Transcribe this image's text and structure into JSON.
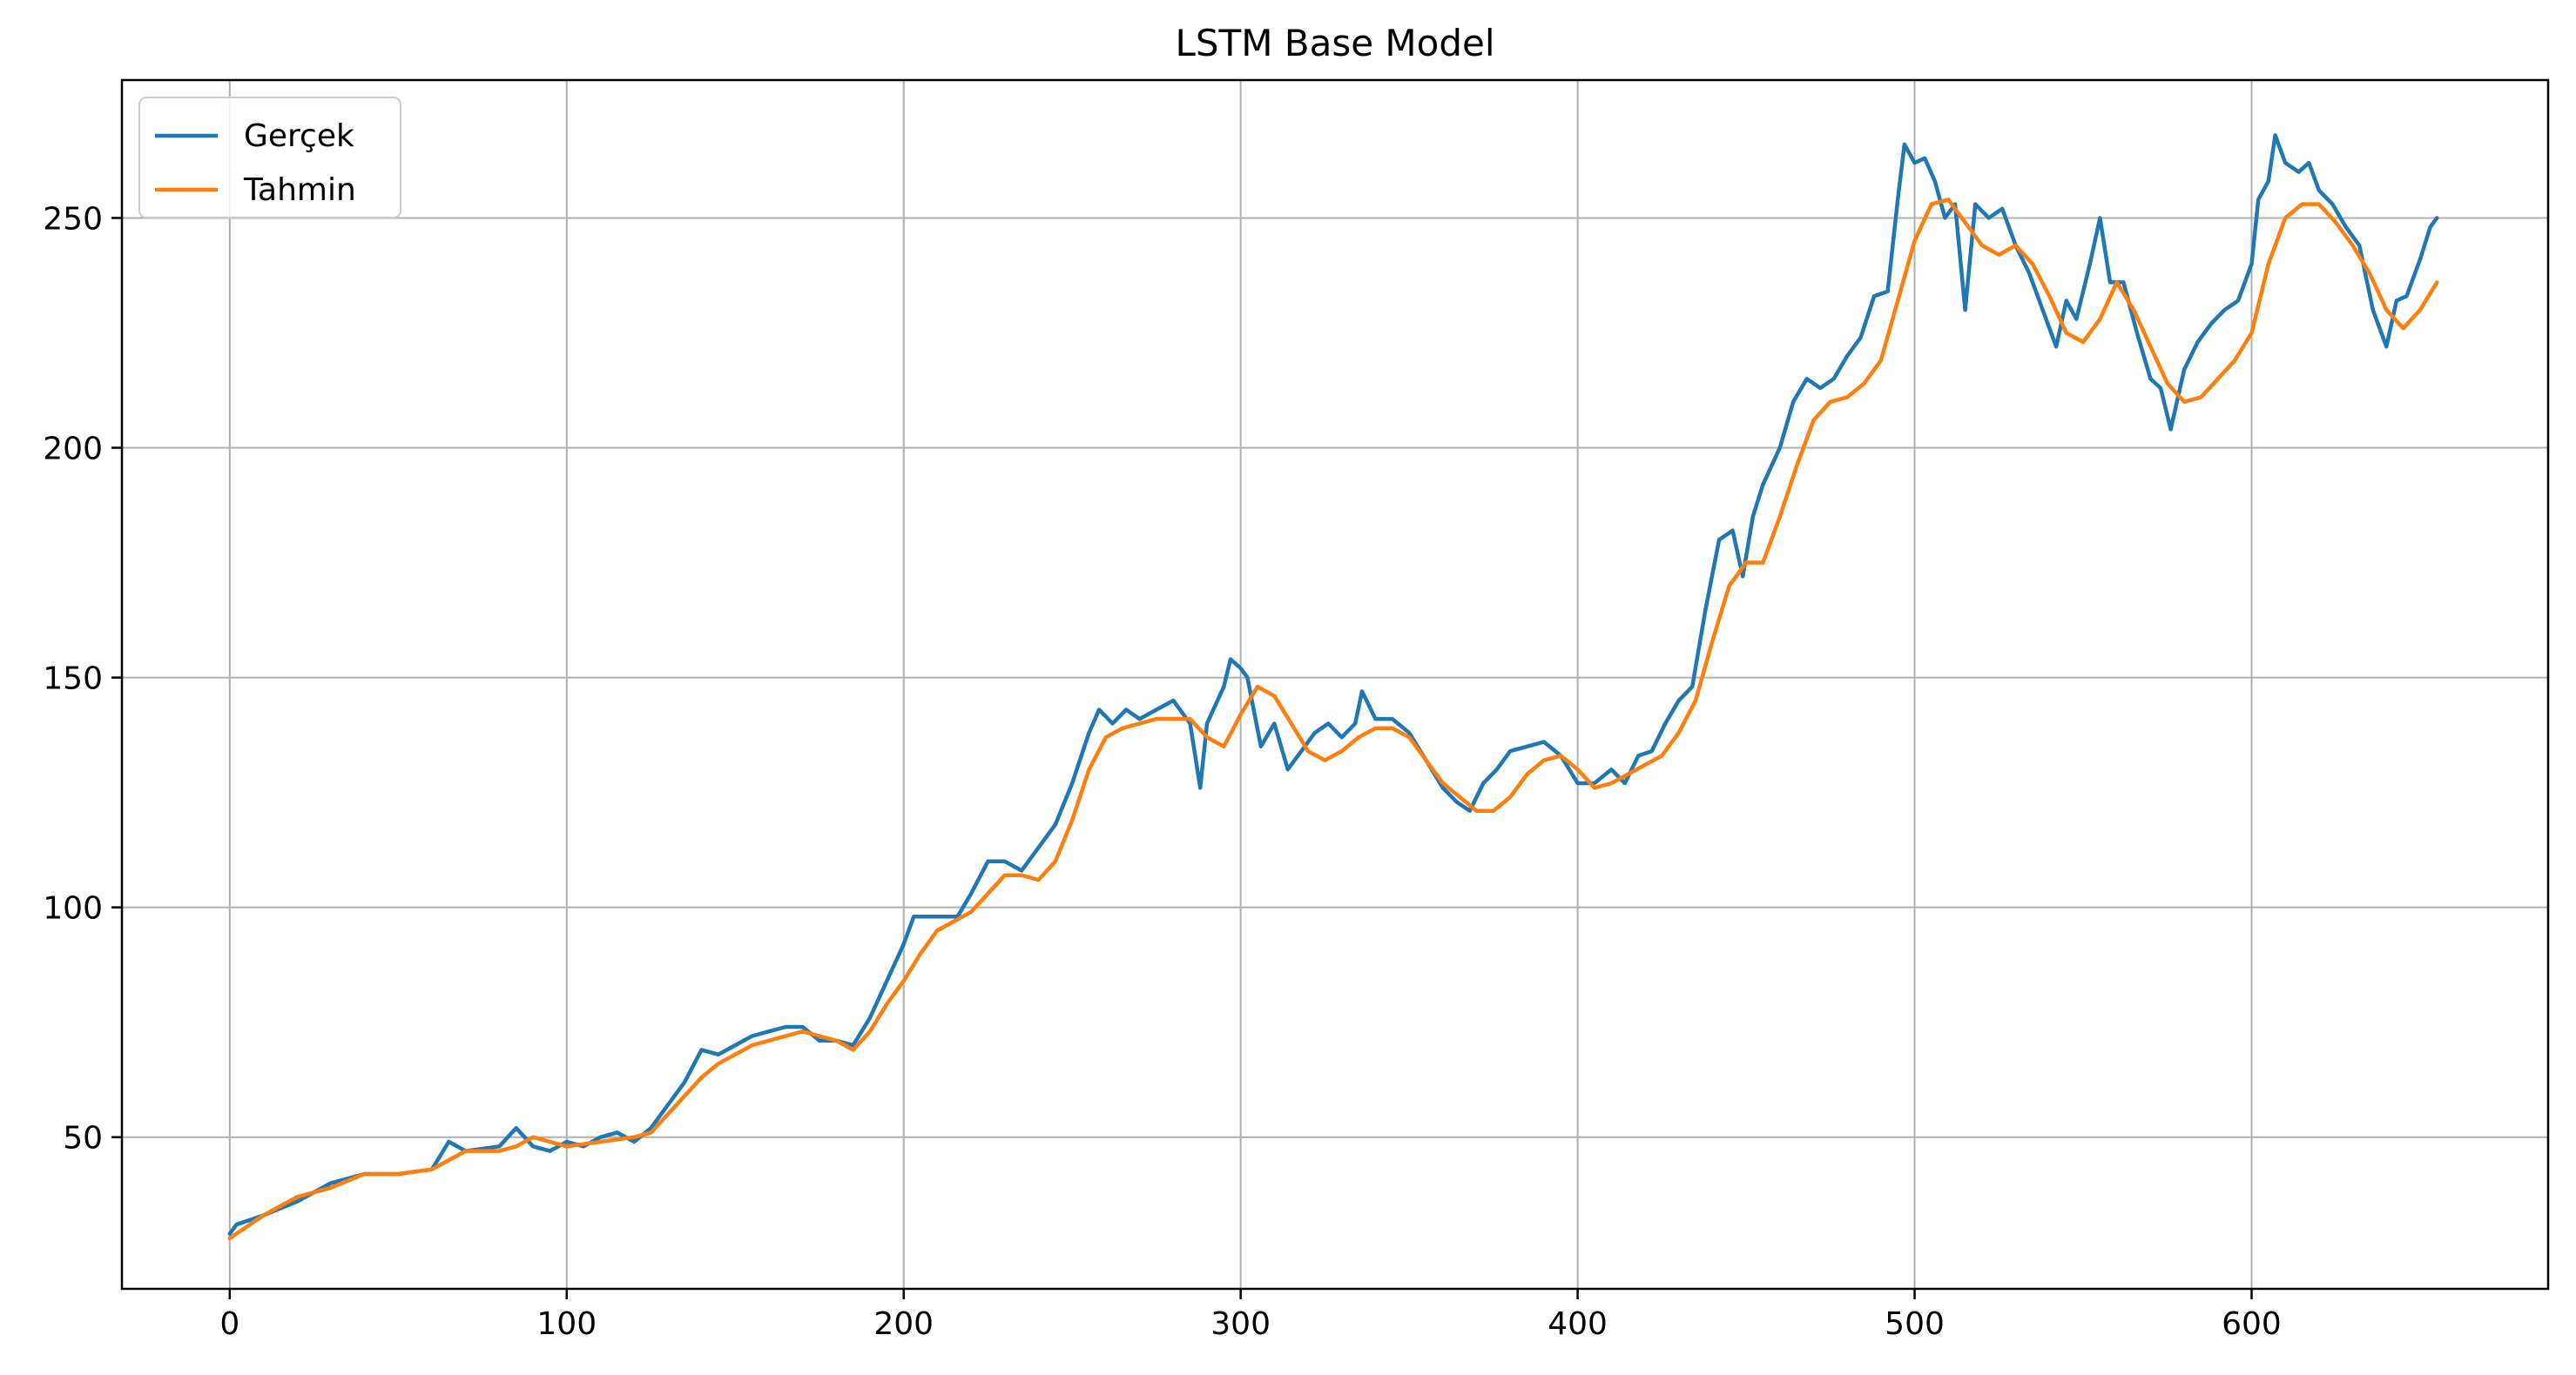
{
  "chart_data": {
    "type": "line",
    "title": "LSTM Base Model",
    "xlabel": "",
    "ylabel": "",
    "xlim": [
      -32,
      688
    ],
    "ylim": [
      17,
      280
    ],
    "xticks": [
      0,
      100,
      200,
      300,
      400,
      500,
      600
    ],
    "yticks": [
      50,
      100,
      150,
      200,
      250
    ],
    "grid": true,
    "legend_position": "top-left",
    "series": [
      {
        "name": "Gerçek",
        "color": "#1f77b4",
        "points": [
          [
            0,
            29
          ],
          [
            2,
            31
          ],
          [
            10,
            33
          ],
          [
            20,
            36
          ],
          [
            30,
            40
          ],
          [
            40,
            42
          ],
          [
            50,
            42
          ],
          [
            60,
            43
          ],
          [
            65,
            49
          ],
          [
            70,
            47
          ],
          [
            80,
            48
          ],
          [
            85,
            52
          ],
          [
            90,
            48
          ],
          [
            95,
            47
          ],
          [
            100,
            49
          ],
          [
            105,
            48
          ],
          [
            110,
            50
          ],
          [
            115,
            51
          ],
          [
            120,
            49
          ],
          [
            125,
            52
          ],
          [
            130,
            57
          ],
          [
            135,
            62
          ],
          [
            140,
            69
          ],
          [
            145,
            68
          ],
          [
            150,
            70
          ],
          [
            155,
            72
          ],
          [
            160,
            73
          ],
          [
            165,
            74
          ],
          [
            170,
            74
          ],
          [
            175,
            71
          ],
          [
            180,
            71
          ],
          [
            185,
            70
          ],
          [
            190,
            76
          ],
          [
            195,
            84
          ],
          [
            200,
            92
          ],
          [
            203,
            98
          ],
          [
            207,
            98
          ],
          [
            212,
            98
          ],
          [
            216,
            98
          ],
          [
            220,
            103
          ],
          [
            225,
            110
          ],
          [
            230,
            110
          ],
          [
            235,
            108
          ],
          [
            240,
            113
          ],
          [
            245,
            118
          ],
          [
            250,
            127
          ],
          [
            255,
            138
          ],
          [
            258,
            143
          ],
          [
            262,
            140
          ],
          [
            266,
            143
          ],
          [
            270,
            141
          ],
          [
            275,
            143
          ],
          [
            280,
            145
          ],
          [
            285,
            140
          ],
          [
            288,
            126
          ],
          [
            290,
            140
          ],
          [
            295,
            148
          ],
          [
            297,
            154
          ],
          [
            300,
            152
          ],
          [
            302,
            150
          ],
          [
            306,
            135
          ],
          [
            310,
            140
          ],
          [
            314,
            130
          ],
          [
            318,
            134
          ],
          [
            322,
            138
          ],
          [
            326,
            140
          ],
          [
            330,
            137
          ],
          [
            334,
            140
          ],
          [
            336,
            147
          ],
          [
            340,
            141
          ],
          [
            345,
            141
          ],
          [
            350,
            138
          ],
          [
            355,
            132
          ],
          [
            360,
            126
          ],
          [
            364,
            123
          ],
          [
            368,
            121
          ],
          [
            372,
            127
          ],
          [
            376,
            130
          ],
          [
            380,
            134
          ],
          [
            385,
            135
          ],
          [
            390,
            136
          ],
          [
            395,
            133
          ],
          [
            400,
            127
          ],
          [
            405,
            127
          ],
          [
            410,
            130
          ],
          [
            414,
            127
          ],
          [
            418,
            133
          ],
          [
            422,
            134
          ],
          [
            426,
            140
          ],
          [
            430,
            145
          ],
          [
            434,
            148
          ],
          [
            438,
            165
          ],
          [
            442,
            180
          ],
          [
            446,
            182
          ],
          [
            449,
            172
          ],
          [
            452,
            185
          ],
          [
            455,
            192
          ],
          [
            460,
            200
          ],
          [
            464,
            210
          ],
          [
            468,
            215
          ],
          [
            472,
            213
          ],
          [
            476,
            215
          ],
          [
            480,
            220
          ],
          [
            484,
            224
          ],
          [
            488,
            233
          ],
          [
            492,
            234
          ],
          [
            495,
            254
          ],
          [
            497,
            266
          ],
          [
            500,
            262
          ],
          [
            503,
            263
          ],
          [
            506,
            258
          ],
          [
            509,
            250
          ],
          [
            512,
            253
          ],
          [
            515,
            230
          ],
          [
            518,
            253
          ],
          [
            522,
            250
          ],
          [
            526,
            252
          ],
          [
            530,
            244
          ],
          [
            534,
            238
          ],
          [
            538,
            230
          ],
          [
            542,
            222
          ],
          [
            545,
            232
          ],
          [
            548,
            228
          ],
          [
            552,
            240
          ],
          [
            555,
            250
          ],
          [
            558,
            236
          ],
          [
            562,
            236
          ],
          [
            566,
            225
          ],
          [
            570,
            215
          ],
          [
            573,
            213
          ],
          [
            576,
            204
          ],
          [
            580,
            217
          ],
          [
            584,
            223
          ],
          [
            588,
            227
          ],
          [
            592,
            230
          ],
          [
            596,
            232
          ],
          [
            600,
            240
          ],
          [
            602,
            254
          ],
          [
            605,
            258
          ],
          [
            607,
            268
          ],
          [
            610,
            262
          ],
          [
            614,
            260
          ],
          [
            617,
            262
          ],
          [
            620,
            256
          ],
          [
            624,
            253
          ],
          [
            628,
            248
          ],
          [
            632,
            244
          ],
          [
            636,
            230
          ],
          [
            640,
            222
          ],
          [
            643,
            232
          ],
          [
            646,
            233
          ],
          [
            650,
            241
          ],
          [
            653,
            248
          ],
          [
            655,
            250
          ]
        ]
      },
      {
        "name": "Tahmin",
        "color": "#ff7f0e",
        "points": [
          [
            0,
            28
          ],
          [
            10,
            33
          ],
          [
            20,
            37
          ],
          [
            30,
            39
          ],
          [
            40,
            42
          ],
          [
            50,
            42
          ],
          [
            60,
            43
          ],
          [
            65,
            45
          ],
          [
            70,
            47
          ],
          [
            80,
            47
          ],
          [
            85,
            48
          ],
          [
            90,
            50
          ],
          [
            95,
            49
          ],
          [
            100,
            48
          ],
          [
            110,
            49
          ],
          [
            120,
            50
          ],
          [
            125,
            51
          ],
          [
            130,
            55
          ],
          [
            135,
            59
          ],
          [
            140,
            63
          ],
          [
            145,
            66
          ],
          [
            150,
            68
          ],
          [
            155,
            70
          ],
          [
            160,
            71
          ],
          [
            165,
            72
          ],
          [
            170,
            73
          ],
          [
            175,
            72
          ],
          [
            180,
            71
          ],
          [
            185,
            69
          ],
          [
            190,
            73
          ],
          [
            195,
            79
          ],
          [
            200,
            84
          ],
          [
            205,
            90
          ],
          [
            210,
            95
          ],
          [
            215,
            97
          ],
          [
            220,
            99
          ],
          [
            225,
            103
          ],
          [
            230,
            107
          ],
          [
            235,
            107
          ],
          [
            240,
            106
          ],
          [
            245,
            110
          ],
          [
            250,
            119
          ],
          [
            255,
            130
          ],
          [
            260,
            137
          ],
          [
            265,
            139
          ],
          [
            270,
            140
          ],
          [
            275,
            141
          ],
          [
            280,
            141
          ],
          [
            285,
            141
          ],
          [
            290,
            137
          ],
          [
            295,
            135
          ],
          [
            300,
            142
          ],
          [
            305,
            148
          ],
          [
            310,
            146
          ],
          [
            315,
            140
          ],
          [
            320,
            134
          ],
          [
            325,
            132
          ],
          [
            330,
            134
          ],
          [
            335,
            137
          ],
          [
            340,
            139
          ],
          [
            345,
            139
          ],
          [
            350,
            137
          ],
          [
            355,
            132
          ],
          [
            360,
            127
          ],
          [
            365,
            124
          ],
          [
            370,
            121
          ],
          [
            375,
            121
          ],
          [
            380,
            124
          ],
          [
            385,
            129
          ],
          [
            390,
            132
          ],
          [
            395,
            133
          ],
          [
            400,
            130
          ],
          [
            405,
            126
          ],
          [
            410,
            127
          ],
          [
            415,
            129
          ],
          [
            420,
            131
          ],
          [
            425,
            133
          ],
          [
            430,
            138
          ],
          [
            435,
            145
          ],
          [
            440,
            158
          ],
          [
            445,
            170
          ],
          [
            450,
            175
          ],
          [
            455,
            175
          ],
          [
            460,
            185
          ],
          [
            465,
            196
          ],
          [
            470,
            206
          ],
          [
            475,
            210
          ],
          [
            480,
            211
          ],
          [
            485,
            214
          ],
          [
            490,
            219
          ],
          [
            495,
            232
          ],
          [
            500,
            245
          ],
          [
            505,
            253
          ],
          [
            510,
            254
          ],
          [
            515,
            249
          ],
          [
            520,
            244
          ],
          [
            525,
            242
          ],
          [
            530,
            244
          ],
          [
            535,
            240
          ],
          [
            540,
            233
          ],
          [
            545,
            225
          ],
          [
            550,
            223
          ],
          [
            555,
            228
          ],
          [
            560,
            236
          ],
          [
            565,
            230
          ],
          [
            570,
            222
          ],
          [
            575,
            214
          ],
          [
            580,
            210
          ],
          [
            585,
            211
          ],
          [
            590,
            215
          ],
          [
            595,
            219
          ],
          [
            600,
            225
          ],
          [
            605,
            240
          ],
          [
            610,
            250
          ],
          [
            615,
            253
          ],
          [
            620,
            253
          ],
          [
            625,
            249
          ],
          [
            630,
            244
          ],
          [
            635,
            238
          ],
          [
            640,
            230
          ],
          [
            645,
            226
          ],
          [
            650,
            230
          ],
          [
            655,
            236
          ]
        ]
      }
    ]
  }
}
